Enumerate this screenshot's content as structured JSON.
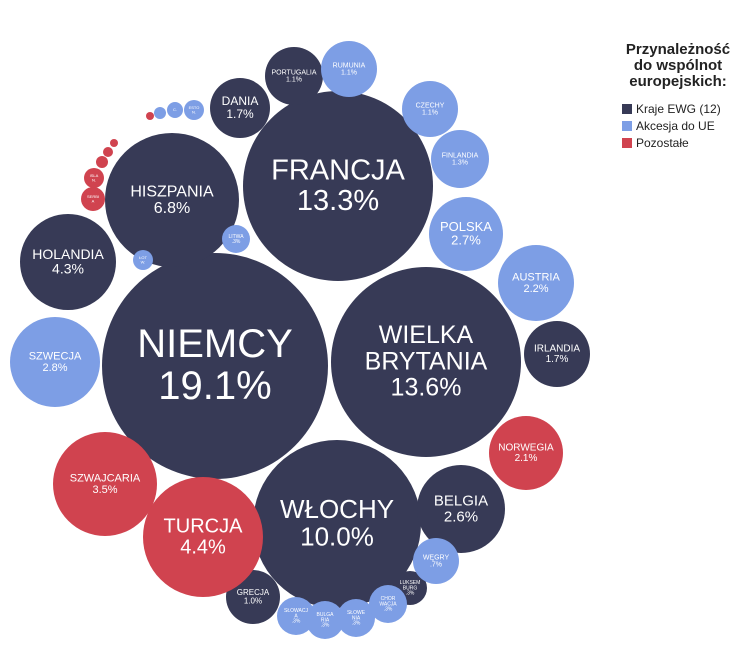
{
  "chart_data": {
    "type": "bubble",
    "legend": {
      "title": "Przynależność do wspólnot europejskich:",
      "title_lines": [
        "Przynależność",
        "do wspólnot",
        "europejskich:"
      ],
      "placement": "right",
      "entries": [
        {
          "group": "ewg",
          "label": "Kraje EWG (12)",
          "color": "#373a56"
        },
        {
          "group": "ue",
          "label": "Akcesja do UE",
          "color": "#7d9ee5"
        },
        {
          "group": "other",
          "label": "Pozostałe",
          "color": "#d0434f"
        }
      ]
    },
    "bubbles": [
      {
        "label": "NIEMCY",
        "value": "19.1%",
        "group": "ewg"
      },
      {
        "label": "FRANCJA",
        "value": "13.3%",
        "group": "ewg"
      },
      {
        "label": "WIELKA BRYTANIA",
        "value": "13.6%",
        "group": "ewg"
      },
      {
        "label": "WŁOCHY",
        "value": "10.0%",
        "group": "ewg"
      },
      {
        "label": "HISZPANIA",
        "value": "6.8%",
        "group": "ewg"
      },
      {
        "label": "HOLANDIA",
        "value": "4.3%",
        "group": "ewg"
      },
      {
        "label": "BELGIA",
        "value": "2.6%",
        "group": "ewg"
      },
      {
        "label": "DANIA",
        "value": "1.7%",
        "group": "ewg"
      },
      {
        "label": "IRLANDIA",
        "value": "1.7%",
        "group": "ewg"
      },
      {
        "label": "PORTUGALIA",
        "value": "1.1%",
        "group": "ewg"
      },
      {
        "label": "GRECJA",
        "value": "1.0%",
        "group": "ewg"
      },
      {
        "label": "LUKSEMBURG",
        "value": ".3%",
        "group": "ewg"
      },
      {
        "label": "SZWECJA",
        "value": "2.8%",
        "group": "ue"
      },
      {
        "label": "POLSKA",
        "value": "2.7%",
        "group": "ue"
      },
      {
        "label": "AUSTRIA",
        "value": "2.2%",
        "group": "ue"
      },
      {
        "label": "RUMUNIA",
        "value": "1.1%",
        "group": "ue"
      },
      {
        "label": "CZECHY",
        "value": "1.1%",
        "group": "ue"
      },
      {
        "label": "FINLANDIA",
        "value": "1.3%",
        "group": "ue"
      },
      {
        "label": "WĘGRY",
        "value": ".7%",
        "group": "ue"
      },
      {
        "label": "LITWA",
        "value": ".3%",
        "group": "ue"
      },
      {
        "label": "ŁOTWA",
        "value": "",
        "group": "ue"
      },
      {
        "label": "ESTONIA",
        "value": "",
        "group": "ue"
      },
      {
        "label": "CYPR",
        "value": "",
        "group": "ue"
      },
      {
        "label": "MALTA",
        "value": "",
        "group": "ue"
      },
      {
        "label": "SŁOWACJA",
        "value": ".3%",
        "group": "ue"
      },
      {
        "label": "BUŁGARIA",
        "value": ".3%",
        "group": "ue"
      },
      {
        "label": "SŁOWENIA",
        "value": ".3%",
        "group": "ue"
      },
      {
        "label": "CHORWACJA",
        "value": ".3%",
        "group": "ue"
      },
      {
        "label": "TURCJA",
        "value": "4.4%",
        "group": "other"
      },
      {
        "label": "SZWAJCARIA",
        "value": "3.5%",
        "group": "other"
      },
      {
        "label": "NORWEGIA",
        "value": "2.1%",
        "group": "other"
      },
      {
        "label": "SERBIA",
        "value": "",
        "group": "other"
      },
      {
        "label": "ISLANDIA",
        "value": "",
        "group": "other"
      },
      {
        "label": "",
        "value": "",
        "group": "other"
      },
      {
        "label": "",
        "value": "",
        "group": "other"
      },
      {
        "label": "",
        "value": "",
        "group": "other"
      },
      {
        "label": "",
        "value": "",
        "group": "other"
      }
    ]
  }
}
